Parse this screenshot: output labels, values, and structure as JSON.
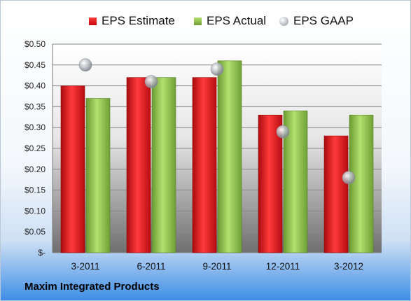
{
  "chart_data": {
    "type": "bar",
    "categories": [
      "3-2011",
      "6-2011",
      "9-2011",
      "12-2011",
      "3-2012"
    ],
    "series": [
      {
        "name": "EPS Estimate",
        "kind": "bar",
        "color": "#d9161c",
        "values": [
          0.4,
          0.42,
          0.42,
          0.33,
          0.28
        ]
      },
      {
        "name": "EPS Actual",
        "kind": "bar",
        "color": "#8cc049",
        "values": [
          0.37,
          0.42,
          0.46,
          0.34,
          0.33
        ]
      },
      {
        "name": "EPS GAAP",
        "kind": "marker",
        "color": "#b4b8be",
        "values": [
          0.45,
          0.41,
          0.44,
          0.29,
          0.18
        ]
      }
    ],
    "ylim": [
      0,
      0.5
    ],
    "yticks": [
      "$-",
      "$0.05",
      "$0.10",
      "$0.15",
      "$0.20",
      "$0.25",
      "$0.30",
      "$0.35",
      "$0.40",
      "$0.45",
      "$0.50"
    ],
    "yticks_values": [
      0,
      0.05,
      0.1,
      0.15,
      0.2,
      0.25,
      0.3,
      0.35,
      0.4,
      0.45,
      0.5
    ],
    "legend": "top",
    "grid": true,
    "footer": "Maxim Integrated Products"
  }
}
